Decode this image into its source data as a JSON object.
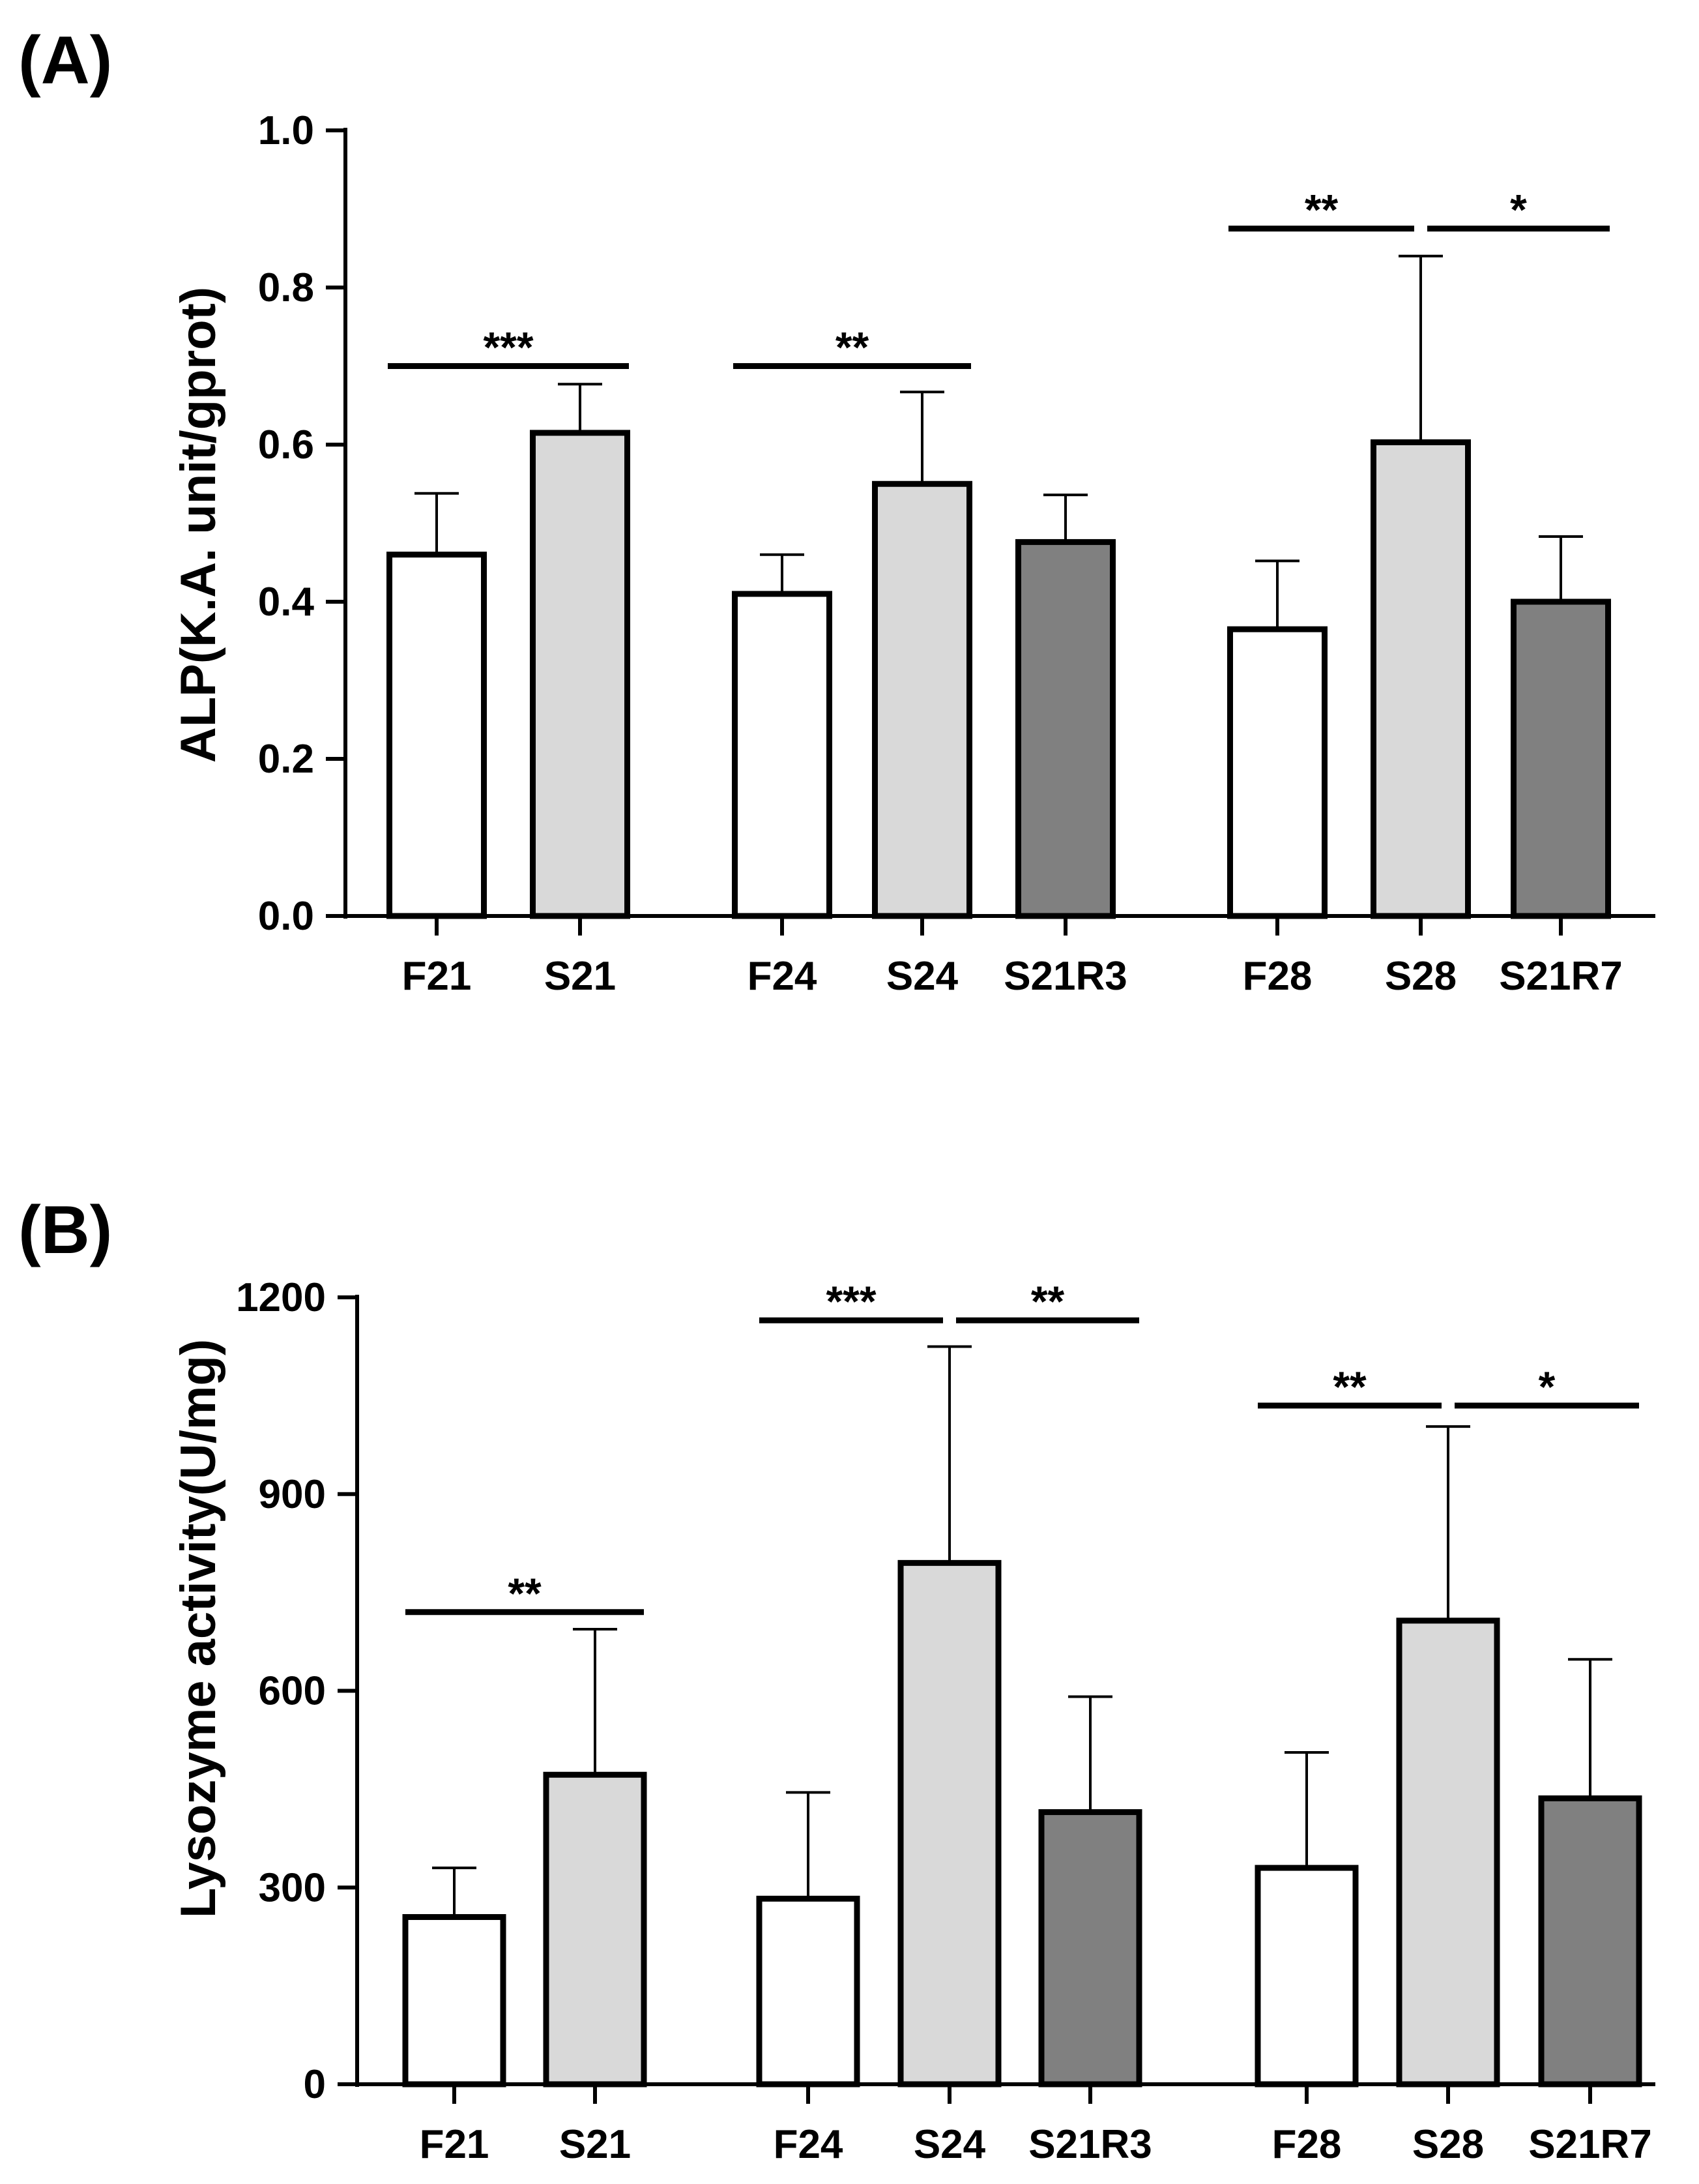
{
  "colors": {
    "F": "#ffffff",
    "S": "#d9d9d9",
    "R": "#808080",
    "stroke": "#000000"
  },
  "chart_data": [
    {
      "panel": "(A)",
      "type": "bar",
      "ylabel": "ALP(K.A. unit/gprot)",
      "ylim": [
        0,
        1.0
      ],
      "yticks": [
        0.0,
        0.2,
        0.4,
        0.6,
        0.8,
        1.0
      ],
      "ytick_labels": [
        "0.0",
        "0.2",
        "0.4",
        "0.6",
        "0.8",
        "1.0"
      ],
      "categories": [
        "F21",
        "S21",
        "F24",
        "S24",
        "S21R3",
        "F28",
        "S28",
        "S21R7"
      ],
      "groups": [
        [
          0,
          1
        ],
        [
          2,
          3,
          4
        ],
        [
          5,
          6,
          7
        ]
      ],
      "fill_keys": [
        "F",
        "S",
        "F",
        "S",
        "R",
        "F",
        "S",
        "R"
      ],
      "values": [
        0.46,
        0.615,
        0.41,
        0.55,
        0.476,
        0.365,
        0.603,
        0.4
      ],
      "errors": [
        0.078,
        0.062,
        0.05,
        0.117,
        0.06,
        0.087,
        0.237,
        0.083
      ],
      "significance": [
        {
          "from": 0,
          "to": 1,
          "label": "***",
          "y": 0.7
        },
        {
          "from": 2,
          "to": 3,
          "label": "**",
          "y": 0.7
        },
        {
          "from": 5,
          "to": 6,
          "label": "**",
          "y": 0.875
        },
        {
          "from": 6,
          "to": 7,
          "label": "*",
          "y": 0.875
        }
      ]
    },
    {
      "panel": "(B)",
      "type": "bar",
      "ylabel": "Lysozyme activity(U/mg)",
      "ylim": [
        0,
        1200
      ],
      "yticks": [
        0,
        300,
        600,
        900,
        1200
      ],
      "ytick_labels": [
        "0",
        "300",
        "600",
        "900",
        "1200"
      ],
      "categories": [
        "F21",
        "S21",
        "F24",
        "S24",
        "S21R3",
        "F28",
        "S28",
        "S21R7"
      ],
      "groups": [
        [
          0,
          1
        ],
        [
          2,
          3,
          4
        ],
        [
          5,
          6,
          7
        ]
      ],
      "fill_keys": [
        "F",
        "S",
        "F",
        "S",
        "R",
        "F",
        "S",
        "R"
      ],
      "values": [
        255,
        472,
        283,
        795,
        415,
        330,
        707,
        436
      ],
      "errors": [
        75,
        222,
        162,
        330,
        176,
        176,
        296,
        212
      ],
      "significance": [
        {
          "from": 0,
          "to": 1,
          "label": "**",
          "y": 720
        },
        {
          "from": 2,
          "to": 3,
          "label": "***",
          "y": 1165
        },
        {
          "from": 3,
          "to": 4,
          "label": "**",
          "y": 1165
        },
        {
          "from": 5,
          "to": 6,
          "label": "**",
          "y": 1035
        },
        {
          "from": 6,
          "to": 7,
          "label": "*",
          "y": 1035
        }
      ]
    }
  ]
}
